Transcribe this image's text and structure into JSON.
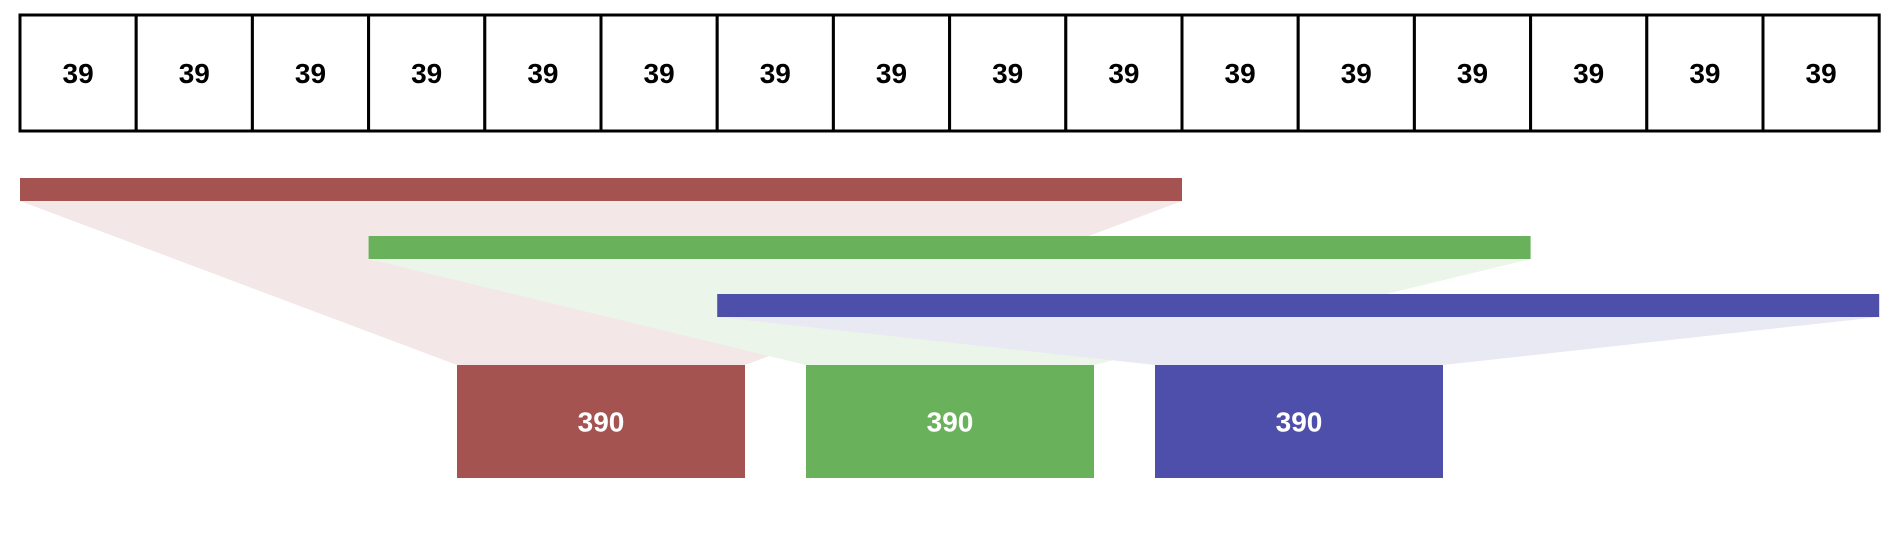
{
  "input_cells": [
    "39",
    "39",
    "39",
    "39",
    "39",
    "39",
    "39",
    "39",
    "39",
    "39",
    "39",
    "39",
    "39",
    "39",
    "39",
    "39"
  ],
  "groups": [
    {
      "start": 0,
      "end": 10,
      "color": "#a55350",
      "fan_color": "#f3e7e7",
      "output_label": "390"
    },
    {
      "start": 3,
      "end": 13,
      "color": "#69b15a",
      "fan_color": "#ecf5ea",
      "output_label": "390"
    },
    {
      "start": 6,
      "end": 16,
      "color": "#4e4fab",
      "fan_color": "#e9e9f4",
      "output_label": "390"
    }
  ]
}
